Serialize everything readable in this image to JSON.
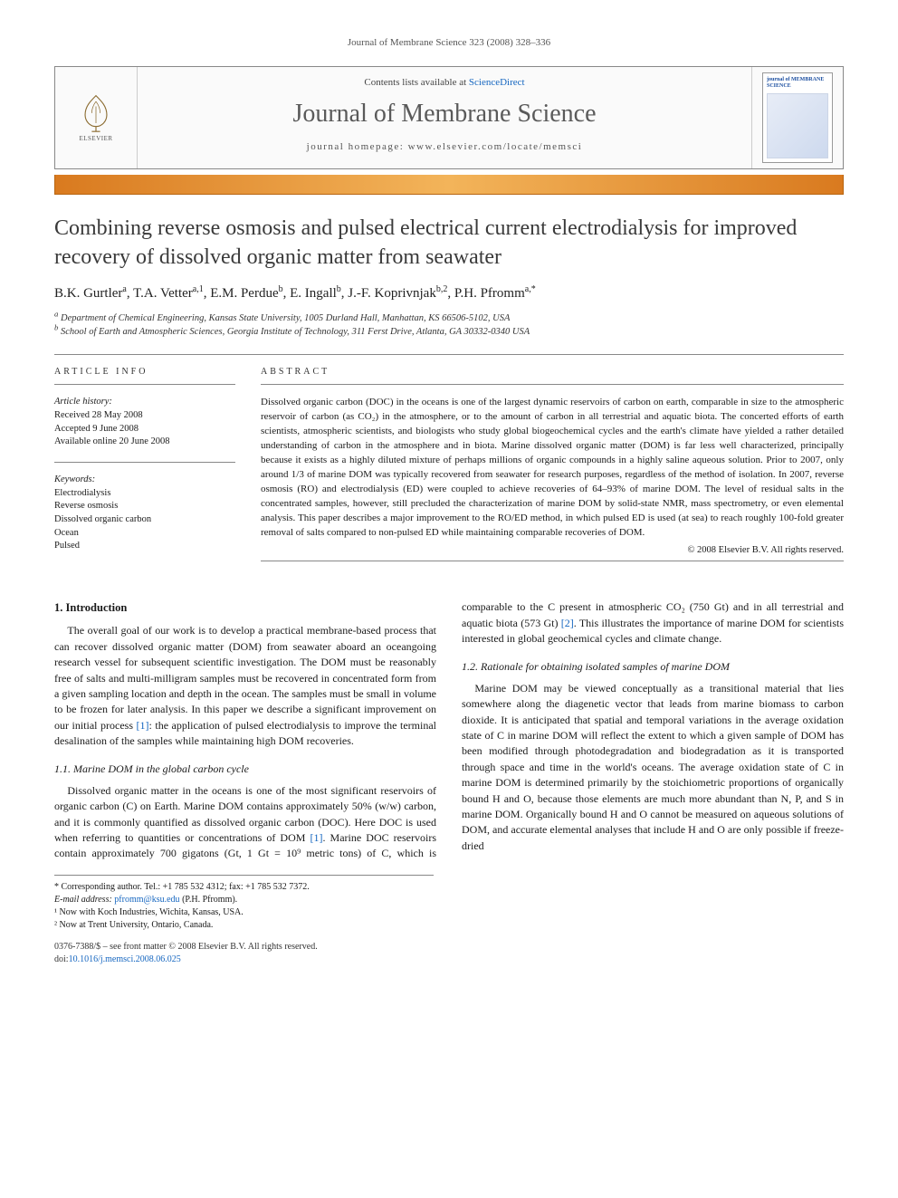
{
  "running_head": "Journal of Membrane Science 323 (2008) 328–336",
  "masthead": {
    "publisher": "ELSEVIER",
    "contents_prefix": "Contents lists available at ",
    "contents_link": "ScienceDirect",
    "journal_title": "Journal of Membrane Science",
    "homepage_prefix": "journal homepage: ",
    "homepage": "www.elsevier.com/locate/memsci",
    "cover_title": "journal of MEMBRANE SCIENCE"
  },
  "title": "Combining reverse osmosis and pulsed electrical current electrodialysis for improved recovery of dissolved organic matter from seawater",
  "authors_html": "B.K. Gurtler<sup>a</sup>, T.A. Vetter<sup>a,1</sup>, E.M. Perdue<sup>b</sup>, E. Ingall<sup>b</sup>, J.-F. Koprivnjak<sup>b,2</sup>, P.H. Pfromm<sup>a,*</sup>",
  "affiliations": {
    "a": "Department of Chemical Engineering, Kansas State University, 1005 Durland Hall, Manhattan, KS 66506-5102, USA",
    "b": "School of Earth and Atmospheric Sciences, Georgia Institute of Technology, 311 Ferst Drive, Atlanta, GA 30332-0340 USA"
  },
  "article_info": {
    "head": "ARTICLE INFO",
    "history_head": "Article history:",
    "received": "Received 28 May 2008",
    "accepted": "Accepted 9 June 2008",
    "online": "Available online 20 June 2008",
    "keywords_head": "Keywords:",
    "keywords": [
      "Electrodialysis",
      "Reverse osmosis",
      "Dissolved organic carbon",
      "Ocean",
      "Pulsed"
    ]
  },
  "abstract": {
    "head": "ABSTRACT",
    "body": "Dissolved organic carbon (DOC) in the oceans is one of the largest dynamic reservoirs of carbon on earth, comparable in size to the atmospheric reservoir of carbon (as CO₂) in the atmosphere, or to the amount of carbon in all terrestrial and aquatic biota. The concerted efforts of earth scientists, atmospheric scientists, and biologists who study global biogeochemical cycles and the earth's climate have yielded a rather detailed understanding of carbon in the atmosphere and in biota. Marine dissolved organic matter (DOM) is far less well characterized, principally because it exists as a highly diluted mixture of perhaps millions of organic compounds in a highly saline aqueous solution. Prior to 2007, only around 1/3 of marine DOM was typically recovered from seawater for research purposes, regardless of the method of isolation. In 2007, reverse osmosis (RO) and electrodialysis (ED) were coupled to achieve recoveries of 64–93% of marine DOM. The level of residual salts in the concentrated samples, however, still precluded the characterization of marine DOM by solid-state NMR, mass spectrometry, or even elemental analysis. This paper describes a major improvement to the RO/ED method, in which pulsed ED is used (at sea) to reach roughly 100-fold greater removal of salts compared to non-pulsed ED while maintaining comparable recoveries of DOM.",
    "copyright": "© 2008 Elsevier B.V. All rights reserved."
  },
  "sections": {
    "s1_head": "1.  Introduction",
    "s1_p1": "The overall goal of our work is to develop a practical membrane-based process that can recover dissolved organic matter (DOM) from seawater aboard an oceangoing research vessel for subsequent scientific investigation. The DOM must be reasonably free of salts and multi-milligram samples must be recovered in concentrated form from a given sampling location and depth in the ocean. The samples must be small in volume to be frozen for later analysis. In this paper we describe a significant improvement on our initial process ",
    "s1_cite1": "[1]",
    "s1_p1b": ": the application of pulsed electrodialysis to improve the terminal desalination of the samples while maintaining high DOM recoveries.",
    "s11_head": "1.1.  Marine DOM in the global carbon cycle",
    "s11_p1": "Dissolved organic matter in the oceans is one of the most significant reservoirs of organic carbon (C) on Earth. Marine DOM contains approximately 50% (w/w) carbon, and it is commonly quantified as dissolved organic carbon (DOC). Here DOC is used when referring to quantities or concentrations of DOM ",
    "s11_cite1": "[1]",
    "s11_p1b": ". Marine DOC reservoirs contain approximately 700 gigatons (Gt, 1 Gt = 10⁹ metric tons) of C, which is comparable to the C present in atmospheric CO₂ (750 Gt) and in all terrestrial and aquatic biota (573 Gt) ",
    "s11_cite2": "[2]",
    "s11_p1c": ". This illustrates the importance of marine DOM for scientists interested in global geochemical cycles and climate change.",
    "s12_head": "1.2.  Rationale for obtaining isolated samples of marine DOM",
    "s12_p1": "Marine DOM may be viewed conceptually as a transitional material that lies somewhere along the diagenetic vector that leads from marine biomass to carbon dioxide. It is anticipated that spatial and temporal variations in the average oxidation state of C in marine DOM will reflect the extent to which a given sample of DOM has been modified through photodegradation and biodegradation as it is transported through space and time in the world's oceans. The average oxidation state of C in marine DOM is determined primarily by the stoichiometric proportions of organically bound H and O, because those elements are much more abundant than N, P, and S in marine DOM. Organically bound H and O cannot be measured on aqueous solutions of DOM, and accurate elemental analyses that include H and O are only possible if freeze-dried"
  },
  "footnotes": {
    "corr": "* Corresponding author. Tel.: +1 785 532 4312; fax: +1 785 532 7372.",
    "email_label": "E-mail address: ",
    "email": "pfromm@ksu.edu",
    "email_who": " (P.H. Pfromm).",
    "n1": "¹ Now with Koch Industries, Wichita, Kansas, USA.",
    "n2": "² Now at Trent University, Ontario, Canada."
  },
  "footer": {
    "line1": "0376-7388/$ – see front matter © 2008 Elsevier B.V. All rights reserved.",
    "doi_label": "doi:",
    "doi": "10.1016/j.memsci.2008.06.025"
  },
  "colors": {
    "link": "#1566c0",
    "orange_dark": "#d97a1f",
    "orange_light": "#f3b45a",
    "rule": "#888888"
  }
}
